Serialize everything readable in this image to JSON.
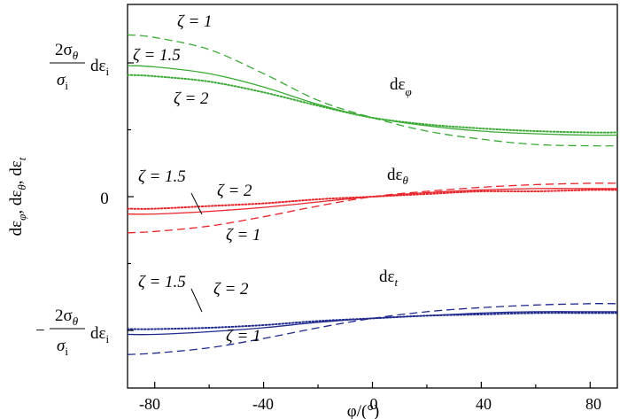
{
  "chart_data": {
    "type": "line",
    "xlabel": "φ/(°)",
    "ylabel": "dε_φ , dε_θ , dε_t",
    "xlim": [
      -90,
      90
    ],
    "xticks": [
      -80,
      -40,
      0,
      40,
      80
    ],
    "grid": false,
    "colors": {
      "phi": "#3aaa35",
      "theta": "#e8232a",
      "t": "#1f2a8c"
    },
    "ylevels": {
      "top": {
        "label_num": "2σ",
        "label_num_sub": "θ",
        "label_den": "σ",
        "label_den_sub": "i",
        "label_tail": "dε",
        "label_tail_sub": "i",
        "value": 1
      },
      "zero": {
        "label": "0",
        "value": 0
      },
      "bottom": {
        "label_sign": "−",
        "label_num": "2σ",
        "label_num_sub": "θ",
        "label_den": "σ",
        "label_den_sub": "i",
        "label_tail": "dε",
        "label_tail_sub": "i",
        "value": -1
      }
    },
    "groups": [
      {
        "key": "phi",
        "name_main": "dε",
        "name_sub": "φ",
        "series": [
          {
            "zeta": "1",
            "style": "dashed",
            "x": [
              -90,
              -80,
              -60,
              -40,
              -20,
              0,
              20,
              40,
              60,
              80,
              90
            ],
            "y": [
              1.21,
              1.19,
              1.1,
              0.92,
              0.72,
              0.59,
              0.49,
              0.43,
              0.39,
              0.38,
              0.38
            ]
          },
          {
            "zeta": "1.5",
            "style": "solid",
            "x": [
              -90,
              -80,
              -60,
              -40,
              -20,
              0,
              20,
              40,
              60,
              80,
              90
            ],
            "y": [
              0.98,
              0.97,
              0.92,
              0.82,
              0.69,
              0.59,
              0.53,
              0.49,
              0.47,
              0.46,
              0.46
            ]
          },
          {
            "zeta": "2",
            "style": "dotted",
            "x": [
              -90,
              -80,
              -60,
              -40,
              -20,
              0,
              20,
              40,
              60,
              80,
              90
            ],
            "y": [
              0.91,
              0.9,
              0.86,
              0.78,
              0.68,
              0.59,
              0.54,
              0.51,
              0.49,
              0.48,
              0.48
            ]
          }
        ],
        "zeta_labels": [
          "ζ = 1",
          "ζ = 1.5",
          "ζ = 2"
        ]
      },
      {
        "key": "theta",
        "name_main": "dε",
        "name_sub": "θ",
        "series": [
          {
            "zeta": "1",
            "style": "dashed",
            "x": [
              -90,
              -80,
              -60,
              -40,
              -20,
              0,
              20,
              40,
              60,
              80,
              90
            ],
            "y": [
              -0.27,
              -0.26,
              -0.22,
              -0.15,
              -0.07,
              0.0,
              0.04,
              0.07,
              0.09,
              0.1,
              0.1
            ]
          },
          {
            "zeta": "1.5",
            "style": "solid",
            "x": [
              -90,
              -80,
              -60,
              -40,
              -20,
              0,
              20,
              40,
              60,
              80,
              90
            ],
            "y": [
              -0.13,
              -0.13,
              -0.11,
              -0.08,
              -0.04,
              0.0,
              0.03,
              0.05,
              0.06,
              0.06,
              0.06
            ]
          },
          {
            "zeta": "2",
            "style": "dotted",
            "x": [
              -90,
              -80,
              -60,
              -40,
              -20,
              0,
              20,
              40,
              60,
              80,
              90
            ],
            "y": [
              -0.09,
              -0.09,
              -0.07,
              -0.05,
              -0.02,
              0.0,
              0.02,
              0.04,
              0.04,
              0.05,
              0.05
            ]
          }
        ],
        "zeta_labels": [
          "ζ = 1.5",
          "ζ = 2",
          "ζ = 1"
        ]
      },
      {
        "key": "t",
        "name_main": "dε",
        "name_sub": "t",
        "series": [
          {
            "zeta": "1",
            "style": "dashed",
            "x": [
              -90,
              -80,
              -60,
              -40,
              -20,
              0,
              20,
              40,
              60,
              80,
              90
            ],
            "y": [
              -1.18,
              -1.17,
              -1.13,
              -1.06,
              -0.98,
              -0.91,
              -0.86,
              -0.83,
              -0.81,
              -0.8,
              -0.8
            ]
          },
          {
            "zeta": "1.5",
            "style": "solid",
            "x": [
              -90,
              -80,
              -60,
              -40,
              -20,
              0,
              20,
              40,
              60,
              80,
              90
            ],
            "y": [
              -1.03,
              -1.03,
              -1.01,
              -0.98,
              -0.94,
              -0.91,
              -0.89,
              -0.87,
              -0.86,
              -0.86,
              -0.86
            ]
          },
          {
            "zeta": "2",
            "style": "dotted",
            "x": [
              -90,
              -80,
              -60,
              -40,
              -20,
              0,
              20,
              40,
              60,
              80,
              90
            ],
            "y": [
              -0.99,
              -0.99,
              -0.98,
              -0.96,
              -0.93,
              -0.91,
              -0.89,
              -0.88,
              -0.87,
              -0.87,
              -0.87
            ]
          }
        ],
        "zeta_labels": [
          "ζ = 1.5",
          "ζ = 2",
          "ζ = 1"
        ]
      }
    ]
  }
}
